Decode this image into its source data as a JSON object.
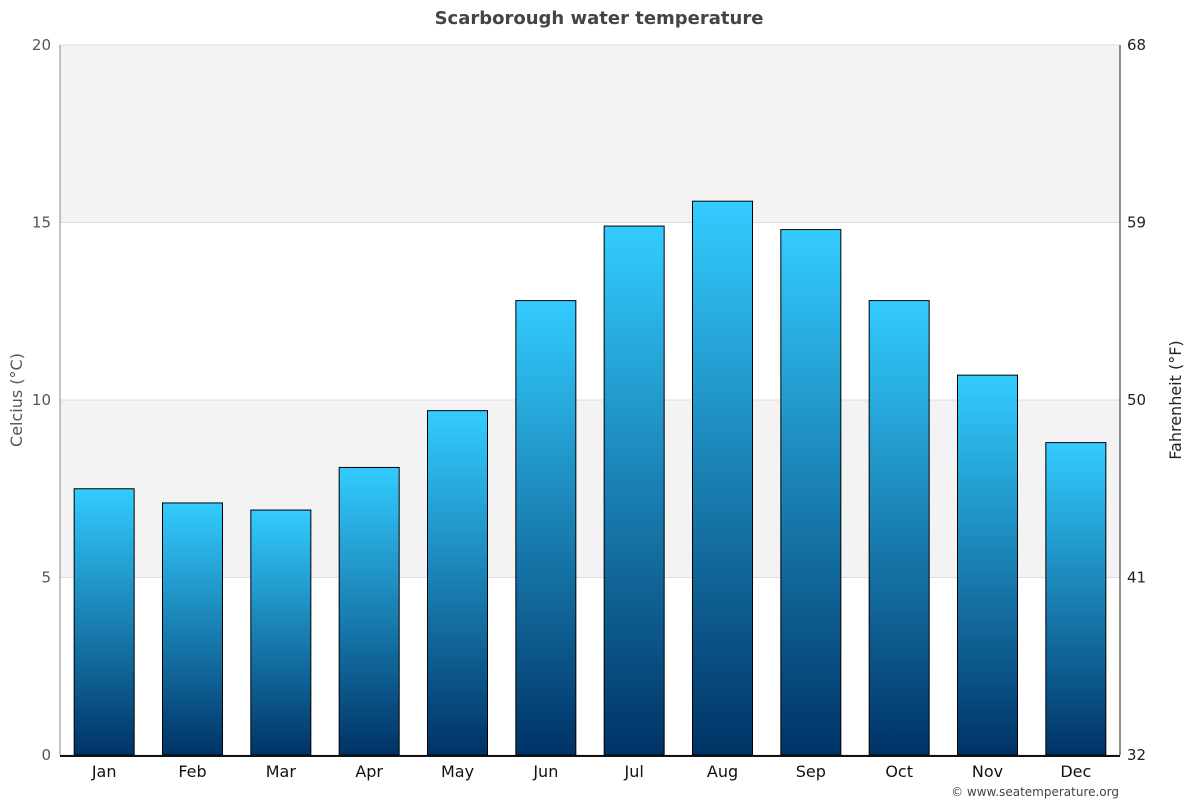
{
  "chart_data": {
    "type": "bar",
    "title": "Scarborough water temperature",
    "ylabel": "Celcius (°C)",
    "ylabel_right": "Fahrenheit (°F)",
    "categories": [
      "Jan",
      "Feb",
      "Mar",
      "Apr",
      "May",
      "Jun",
      "Jul",
      "Aug",
      "Sep",
      "Oct",
      "Nov",
      "Dec"
    ],
    "values": [
      7.5,
      7.1,
      6.9,
      8.1,
      9.7,
      12.8,
      14.9,
      15.6,
      14.8,
      12.8,
      10.7,
      8.8
    ],
    "ylim": [
      0,
      20
    ],
    "yticks": [
      "0",
      "5",
      "10",
      "15",
      "20"
    ],
    "yticks_right": [
      "32",
      "41",
      "50",
      "59",
      "68"
    ],
    "grid": true,
    "legend": "none",
    "colors": {
      "bar_top": "#33ccff",
      "bar_bottom": "#003366",
      "band": "#f3f3f3"
    }
  },
  "credit": "© www.seatemperature.org"
}
